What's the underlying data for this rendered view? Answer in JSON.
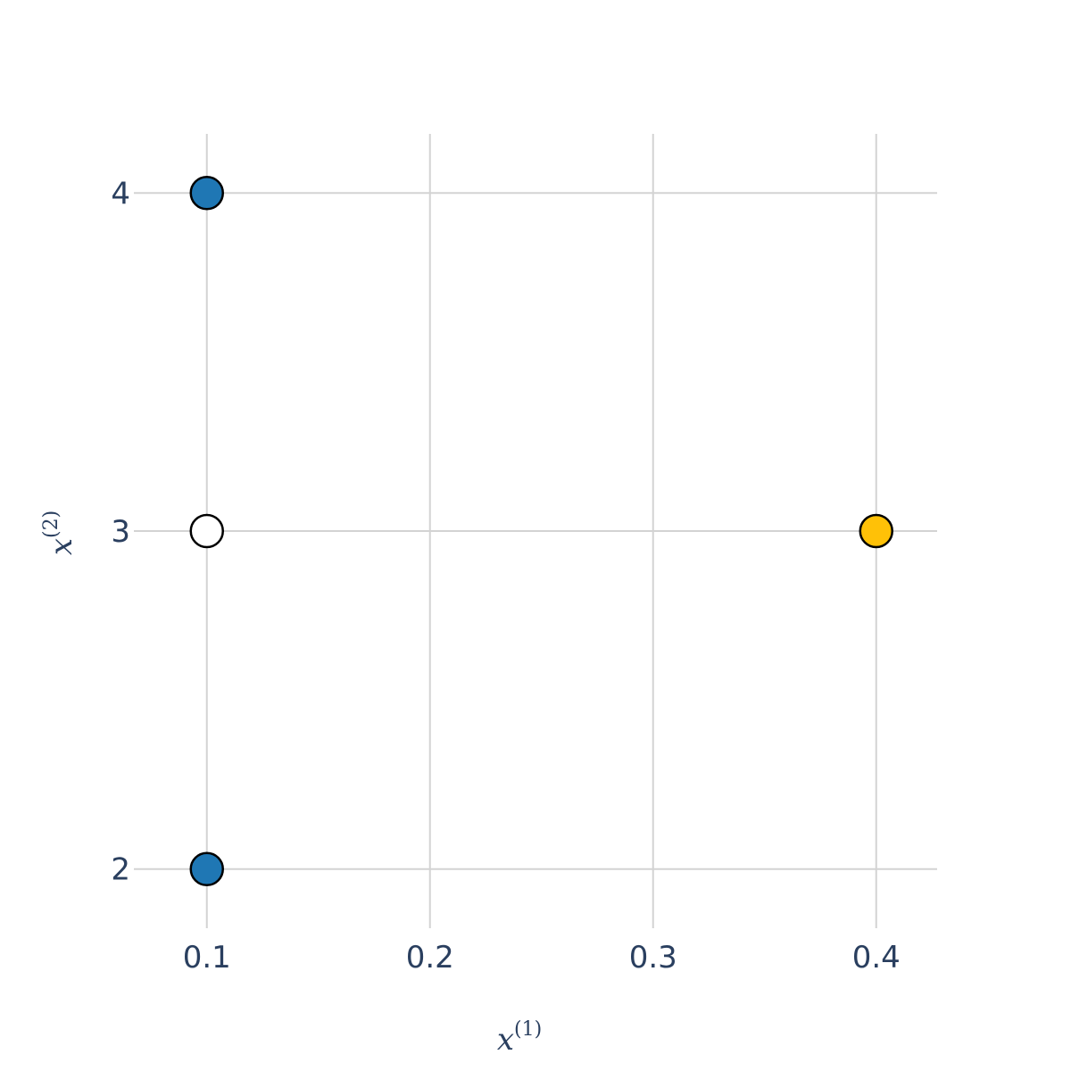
{
  "chart_data": {
    "type": "scatter",
    "title": "",
    "xlabel": {
      "base": "x",
      "sup": "(1)"
    },
    "ylabel": {
      "base": "x",
      "sup": "(2)"
    },
    "xlim": [
      0.0673,
      0.4273
    ],
    "ylim": [
      1.825,
      4.175
    ],
    "x_ticks": [
      0.1,
      0.2,
      0.3,
      0.4
    ],
    "x_tick_labels": [
      "0.1",
      "0.2",
      "0.3",
      "0.4"
    ],
    "y_ticks": [
      2,
      3,
      4
    ],
    "y_tick_labels": [
      "2",
      "3",
      "4"
    ],
    "grid": true,
    "points": [
      {
        "x": 0.1,
        "y": 4,
        "color": "#1f77b4"
      },
      {
        "x": 0.1,
        "y": 3,
        "color": "#ffffff"
      },
      {
        "x": 0.1,
        "y": 2,
        "color": "#1f77b4"
      },
      {
        "x": 0.4,
        "y": 3,
        "color": "#ffc107"
      }
    ]
  }
}
